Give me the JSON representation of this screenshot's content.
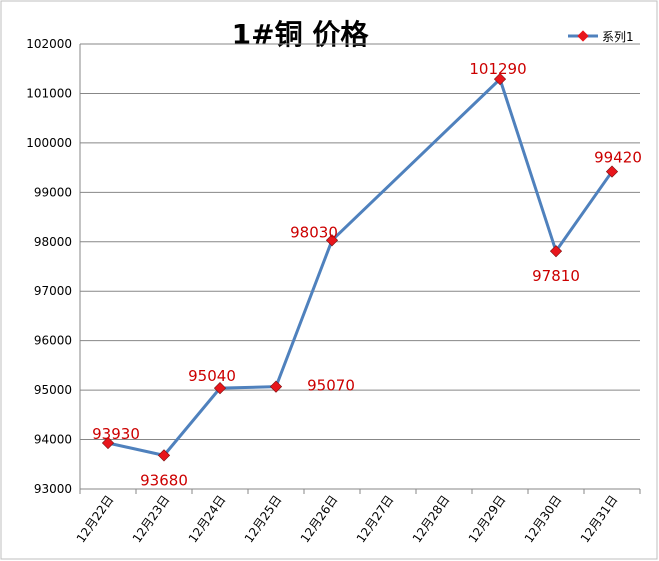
{
  "chart_data": {
    "type": "line",
    "title": "1#铜 价格",
    "xlabel": "",
    "ylabel": "",
    "categories": [
      "12月22日",
      "12月23日",
      "12月24日",
      "12月25日",
      "12月26日",
      "12月27日",
      "12月28日",
      "12月29日",
      "12月30日",
      "12月31日"
    ],
    "series": [
      {
        "name": "系列1",
        "points": [
          {
            "category": "12月22日",
            "value": 93930
          },
          {
            "category": "12月23日",
            "value": 93680
          },
          {
            "category": "12月24日",
            "value": 95040
          },
          {
            "category": "12月25日",
            "value": 95070
          },
          {
            "category": "12月26日",
            "value": 98030
          },
          {
            "category": "12月29日",
            "value": 101290
          },
          {
            "category": "12月30日",
            "value": 97810
          },
          {
            "category": "12月31日",
            "value": 99420
          }
        ]
      }
    ],
    "ylim": [
      93000,
      102000
    ],
    "yticks": [
      93000,
      94000,
      95000,
      96000,
      97000,
      98000,
      99000,
      100000,
      101000,
      102000
    ],
    "grid": "horizontal",
    "legend": "top-right",
    "colors": {
      "line": "#4f81bd",
      "marker": "#e8161c",
      "data_label": "#cc0000"
    }
  }
}
